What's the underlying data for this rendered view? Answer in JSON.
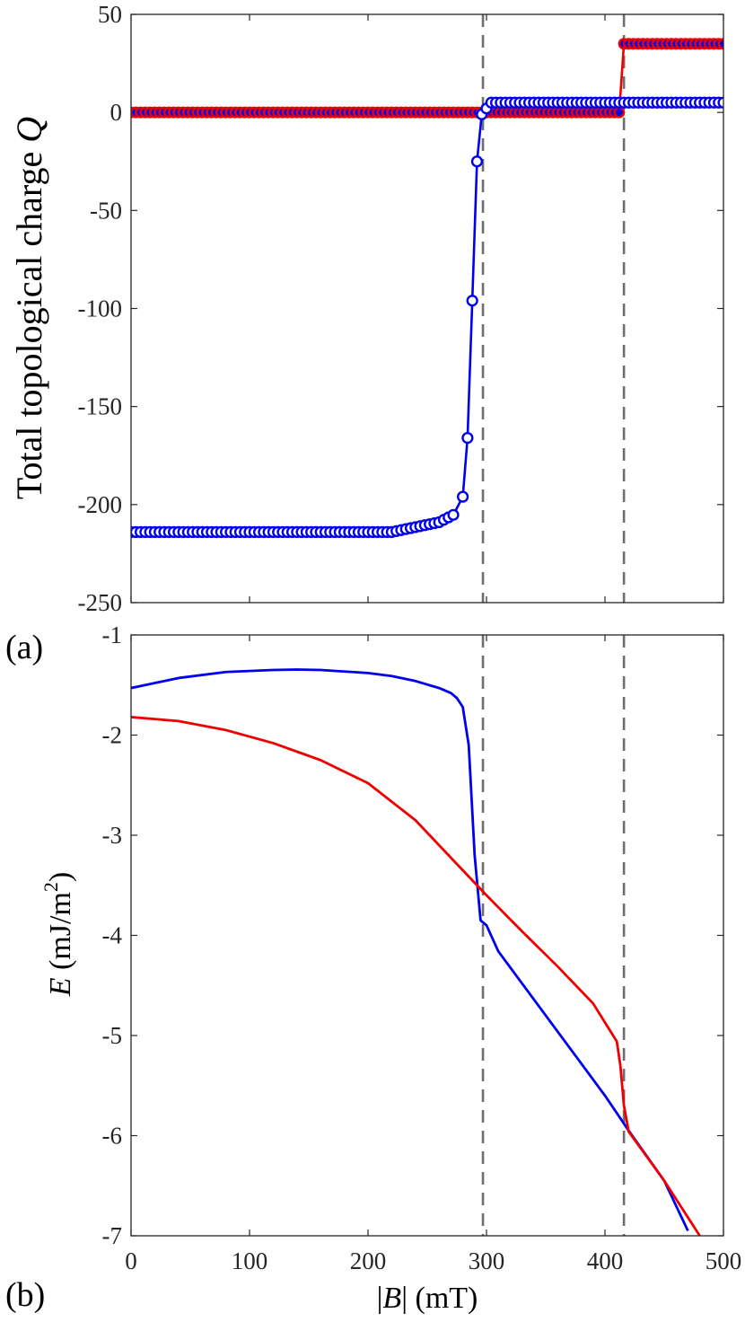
{
  "chart_data": [
    {
      "type": "line",
      "panel_label": "(a)",
      "ylabel": "Total topological charge",
      "ylabel_var": "Q",
      "xlim": [
        0,
        500
      ],
      "ylim": [
        -250,
        50
      ],
      "x_ticks": [
        0,
        100,
        200,
        300,
        400,
        500
      ],
      "y_ticks": [
        "-250",
        "-200",
        "-150",
        "-100",
        "-50",
        "0",
        "50"
      ],
      "y_tick_values": [
        -250,
        -200,
        -150,
        -100,
        -50,
        0,
        50
      ],
      "vlines": [
        297,
        416
      ],
      "colors": {
        "blue": "#0000ee",
        "red": "#ee0000"
      },
      "series": [
        {
          "color": "blue",
          "marker": "circle-open",
          "step": 4,
          "segments": [
            {
              "x0": 0,
              "x1": 220,
              "y0": -214,
              "y1": -214
            },
            {
              "x0": 220,
              "x1": 260,
              "y0": -214,
              "y1": -209
            },
            {
              "x0": 260,
              "x1": 276,
              "y0": -209,
              "y1": -204
            }
          ],
          "explicit": [
            [
              280,
              -196
            ],
            [
              284,
              -166
            ],
            [
              288,
              -96
            ],
            [
              292,
              -25
            ],
            [
              296,
              -1
            ],
            [
              300,
              2
            ],
            [
              304,
              5
            ]
          ],
          "tail": {
            "x0": 308,
            "x1": 500,
            "y": 5
          }
        },
        {
          "color": "red",
          "marker": "circle-filled-blue-center",
          "step": 4,
          "flat": [
            {
              "x0": 0,
              "x1": 412,
              "y": 0
            },
            {
              "x0": 416,
              "x1": 500,
              "y": 35
            }
          ]
        }
      ]
    },
    {
      "type": "line",
      "panel_label": "(b)",
      "xlabel": "|B| (mT)",
      "xlabel_var": "B",
      "xlabel_unit": "(mT)",
      "ylabel_var": "E",
      "ylabel_unit": "(mJ/m",
      "ylabel_unit_sup": "2",
      "ylabel_unit_close": ")",
      "xlim": [
        0,
        500
      ],
      "ylim": [
        -7,
        -1
      ],
      "x_ticks": [
        "0",
        "100",
        "200",
        "300",
        "400",
        "500"
      ],
      "x_tick_values": [
        0,
        100,
        200,
        300,
        400,
        500
      ],
      "y_ticks": [
        "-7",
        "-6",
        "-5",
        "-4",
        "-3",
        "-2",
        "-1"
      ],
      "y_tick_values": [
        -7,
        -6,
        -5,
        -4,
        -3,
        -2,
        -1
      ],
      "vlines": [
        297,
        416
      ],
      "series": [
        {
          "color": "blue",
          "x": [
            0,
            40,
            80,
            120,
            140,
            160,
            200,
            220,
            240,
            260,
            270,
            275,
            280,
            285,
            290,
            295,
            300,
            310,
            350,
            400,
            420,
            450,
            470
          ],
          "y": [
            -1.53,
            -1.43,
            -1.37,
            -1.35,
            -1.345,
            -1.35,
            -1.38,
            -1.41,
            -1.46,
            -1.53,
            -1.58,
            -1.63,
            -1.72,
            -2.1,
            -3.2,
            -3.85,
            -3.9,
            -4.16,
            -4.8,
            -5.6,
            -5.95,
            -6.45,
            -6.95
          ]
        },
        {
          "color": "red",
          "x": [
            0,
            40,
            80,
            120,
            160,
            200,
            240,
            280,
            300,
            330,
            360,
            390,
            410,
            413,
            416,
            420,
            450,
            480
          ],
          "y": [
            -1.82,
            -1.86,
            -1.95,
            -2.08,
            -2.25,
            -2.48,
            -2.85,
            -3.35,
            -3.6,
            -3.96,
            -4.31,
            -4.68,
            -5.06,
            -5.3,
            -5.7,
            -5.96,
            -6.45,
            -7.0
          ]
        }
      ]
    }
  ]
}
